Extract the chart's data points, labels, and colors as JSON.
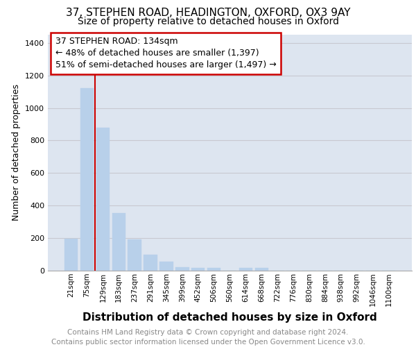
{
  "title1": "37, STEPHEN ROAD, HEADINGTON, OXFORD, OX3 9AY",
  "title2": "Size of property relative to detached houses in Oxford",
  "xlabel": "Distribution of detached houses by size in Oxford",
  "ylabel": "Number of detached properties",
  "categories": [
    "21sqm",
    "75sqm",
    "129sqm",
    "183sqm",
    "237sqm",
    "291sqm",
    "345sqm",
    "399sqm",
    "452sqm",
    "506sqm",
    "560sqm",
    "614sqm",
    "668sqm",
    "722sqm",
    "776sqm",
    "830sqm",
    "884sqm",
    "938sqm",
    "992sqm",
    "1046sqm",
    "1100sqm"
  ],
  "values": [
    197,
    1120,
    880,
    352,
    193,
    97,
    55,
    22,
    18,
    15,
    0,
    15,
    15,
    0,
    0,
    0,
    0,
    0,
    0,
    0,
    0
  ],
  "bar_color": "#b8d0ea",
  "bar_edge_color": "#b8d0ea",
  "annotation_box_text": "37 STEPHEN ROAD: 134sqm\n← 48% of detached houses are smaller (1,397)\n51% of semi-detached houses are larger (1,497) →",
  "vline_color": "#cc0000",
  "vline_pos": 2.5,
  "box_edge_color": "#cc0000",
  "box_face_color": "#ffffff",
  "ylim": [
    0,
    1450
  ],
  "yticks": [
    0,
    200,
    400,
    600,
    800,
    1000,
    1200,
    1400
  ],
  "grid_color": "#c8c8d0",
  "bg_color": "#dde5f0",
  "footer": "Contains HM Land Registry data © Crown copyright and database right 2024.\nContains public sector information licensed under the Open Government Licence v3.0.",
  "title1_fontsize": 11,
  "title2_fontsize": 10,
  "xlabel_fontsize": 11,
  "ylabel_fontsize": 9,
  "footer_fontsize": 7.5,
  "annotation_fontsize": 9
}
